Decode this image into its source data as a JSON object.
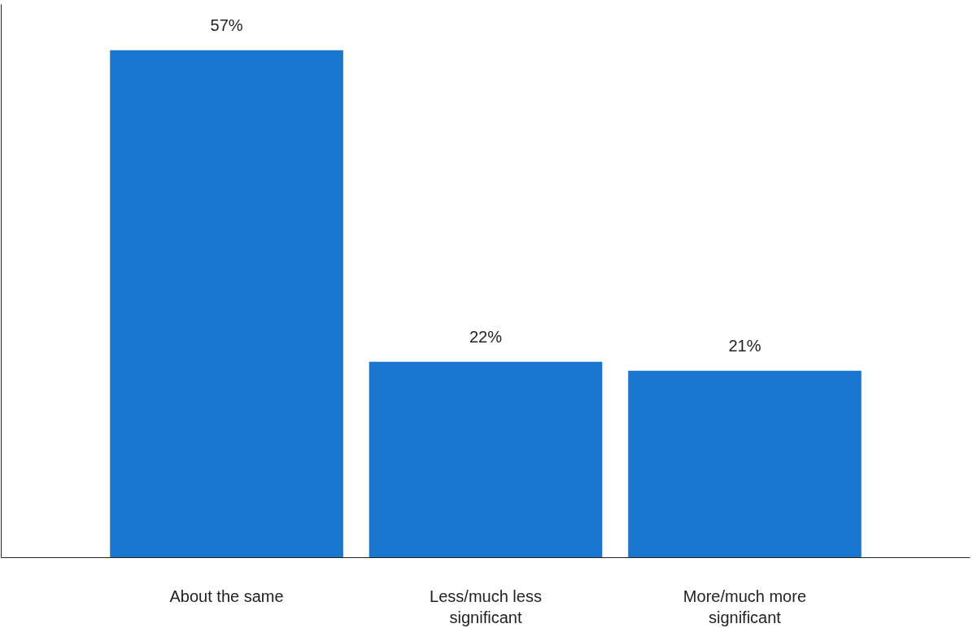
{
  "chart_data": {
    "type": "bar",
    "categories": [
      "About the same",
      "Less/much less significant",
      "More/much more significant"
    ],
    "values": [
      57,
      22,
      21
    ],
    "color": "#1a75cf",
    "value_labels": [
      "57%",
      "22%",
      "21%"
    ],
    "grid": false
  }
}
